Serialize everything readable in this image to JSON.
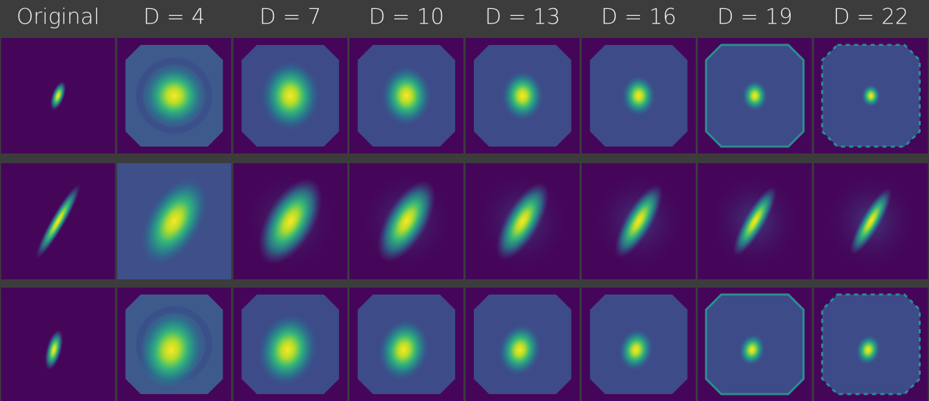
{
  "header": {
    "columns": [
      "Original",
      "D = 4",
      "D = 7",
      "D = 10",
      "D = 13",
      "D = 16",
      "D = 19",
      "D = 22"
    ]
  }
}
